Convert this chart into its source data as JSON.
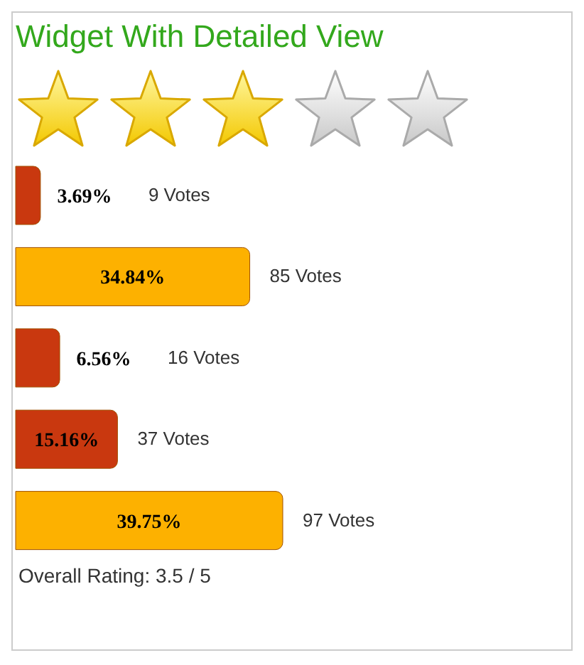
{
  "chart_data": {
    "type": "bar",
    "orientation": "horizontal",
    "title": "Widget With Detailed View",
    "categories": [
      null,
      null,
      null,
      null,
      null
    ],
    "values": [
      3.69,
      34.84,
      6.56,
      15.16,
      39.75
    ],
    "colors": [
      "#c9380f",
      "#fdb100",
      "#c9380f",
      "#c9380f",
      "#fdb100"
    ],
    "value_labels": [
      "3.69%",
      "34.84%",
      "6.56%",
      "15.16%",
      "39.75%"
    ],
    "annotations": [
      "9 Votes",
      "85 Votes",
      "16 Votes",
      "37 Votes",
      "97 Votes",
      "Overall Rating: 3.5 / 5"
    ],
    "legend": false,
    "grid": false
  }
}
